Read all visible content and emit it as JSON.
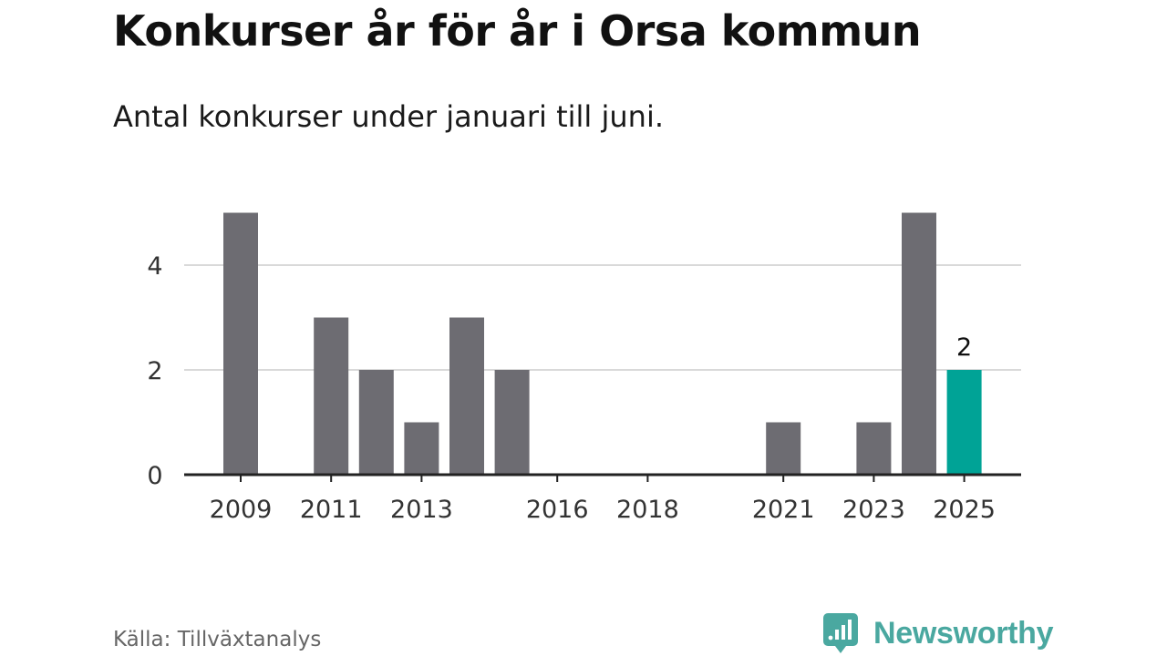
{
  "title": "Konkurser år för år i Orsa kommun",
  "subtitle": "Antal konkurser under januari till juni.",
  "source": "Källa: Tillväxtanalys",
  "brand": {
    "name": "Newsworthy",
    "icon": "newsworthy-logo-icon",
    "color": "#4aa8a0"
  },
  "chart_data": {
    "type": "bar",
    "title": "Konkurser år för år i Orsa kommun",
    "subtitle": "Antal konkurser under januari till juni.",
    "categories": [
      "2009",
      "2010",
      "2011",
      "2012",
      "2013",
      "2014",
      "2015",
      "2016",
      "2017",
      "2018",
      "2019",
      "2020",
      "2021",
      "2022",
      "2023",
      "2024",
      "2025"
    ],
    "values": [
      5,
      0,
      3,
      2,
      1,
      3,
      2,
      0,
      0,
      0,
      0,
      0,
      1,
      0,
      1,
      5,
      2
    ],
    "x_tick_labels": [
      "2009",
      "2011",
      "2013",
      "2016",
      "2018",
      "2021",
      "2023",
      "2025"
    ],
    "y_ticks": [
      0,
      2,
      4
    ],
    "ylim": [
      0,
      5
    ],
    "grid": true,
    "highlight": {
      "category": "2025",
      "label": "2"
    },
    "colors": {
      "bar": "#6d6c72",
      "highlight": "#00a396",
      "grid": "#d9d9d9",
      "axis": "#222222"
    }
  }
}
